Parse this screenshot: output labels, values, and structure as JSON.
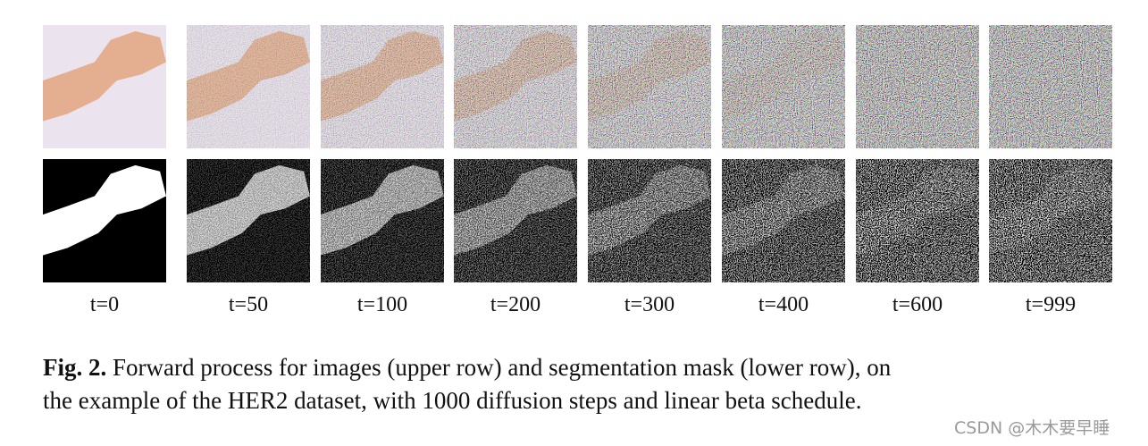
{
  "figure": {
    "labels": [
      "t=0",
      "t=50",
      "t=100",
      "t=200",
      "t=300",
      "t=400",
      "t=600",
      "t=999"
    ],
    "caption": {
      "label": "Fig. 2.",
      "lines": [
        "Forward process for images (upper row) and segmentation mask (lower row), on",
        "the example of the HER2 dataset, with 1000 diffusion steps and linear beta schedule."
      ]
    },
    "watermark": "CSDN @木木要早睡"
  }
}
